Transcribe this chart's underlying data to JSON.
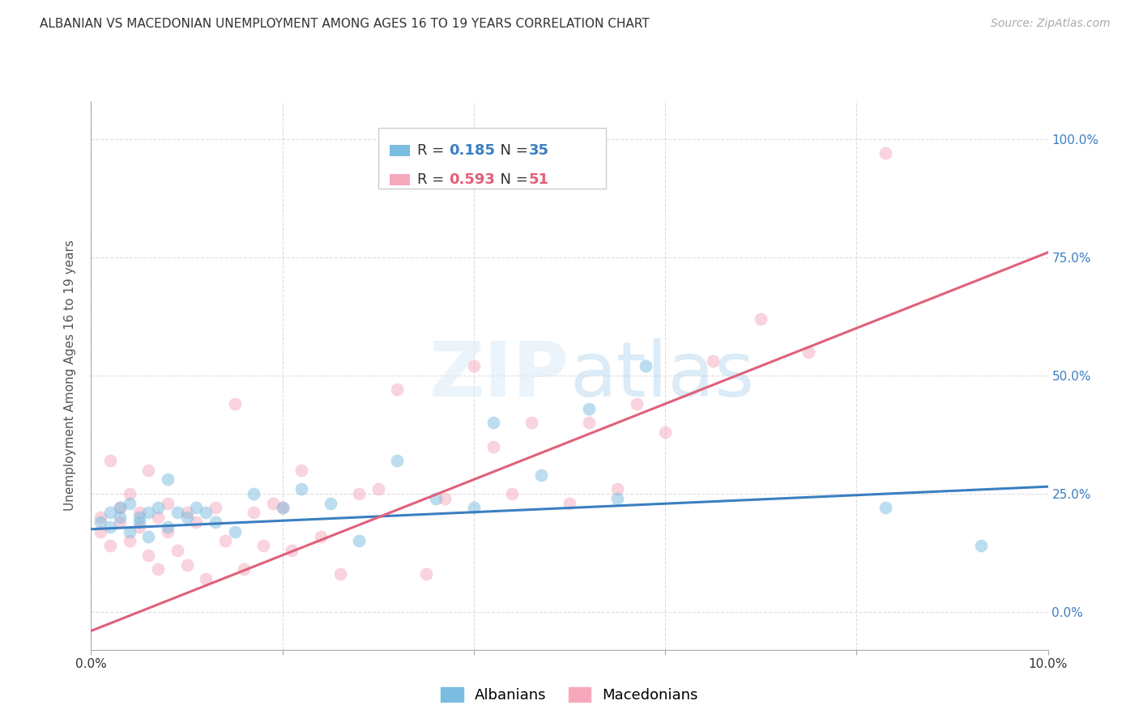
{
  "title": "ALBANIAN VS MACEDONIAN UNEMPLOYMENT AMONG AGES 16 TO 19 YEARS CORRELATION CHART",
  "source": "Source: ZipAtlas.com",
  "ylabel": "Unemployment Among Ages 16 to 19 years",
  "xlim": [
    0.0,
    0.1
  ],
  "ylim": [
    -0.08,
    1.08
  ],
  "yticks": [
    0.0,
    0.25,
    0.5,
    0.75,
    1.0
  ],
  "ytick_labels": [
    "0.0%",
    "25.0%",
    "50.0%",
    "75.0%",
    "100.0%"
  ],
  "xticks": [
    0.0,
    0.02,
    0.04,
    0.06,
    0.08,
    0.1
  ],
  "xtick_labels": [
    "0.0%",
    "",
    "",
    "",
    "",
    "10.0%"
  ],
  "albanian_R": 0.185,
  "albanian_N": 35,
  "macedonian_R": 0.593,
  "macedonian_N": 51,
  "albanian_color": "#7bbde0",
  "macedonian_color": "#f5a8bc",
  "albanian_line_color": "#3a7fc1",
  "macedonian_line_color": "#e0607a",
  "watermark_color": "#d0e8f5",
  "albanian_x": [
    0.001,
    0.002,
    0.002,
    0.003,
    0.003,
    0.004,
    0.004,
    0.005,
    0.005,
    0.006,
    0.006,
    0.007,
    0.008,
    0.008,
    0.009,
    0.01,
    0.011,
    0.012,
    0.013,
    0.015,
    0.017,
    0.02,
    0.022,
    0.025,
    0.028,
    0.032,
    0.036,
    0.04,
    0.042,
    0.047,
    0.052,
    0.055,
    0.058,
    0.083,
    0.093
  ],
  "albanian_y": [
    0.19,
    0.21,
    0.18,
    0.22,
    0.2,
    0.17,
    0.23,
    0.2,
    0.19,
    0.21,
    0.16,
    0.22,
    0.28,
    0.18,
    0.21,
    0.2,
    0.22,
    0.21,
    0.19,
    0.17,
    0.25,
    0.22,
    0.26,
    0.23,
    0.15,
    0.32,
    0.24,
    0.22,
    0.4,
    0.29,
    0.43,
    0.24,
    0.52,
    0.22,
    0.14
  ],
  "macedonian_x": [
    0.001,
    0.001,
    0.002,
    0.002,
    0.003,
    0.003,
    0.004,
    0.004,
    0.005,
    0.005,
    0.006,
    0.006,
    0.007,
    0.007,
    0.008,
    0.008,
    0.009,
    0.01,
    0.01,
    0.011,
    0.012,
    0.013,
    0.014,
    0.015,
    0.016,
    0.017,
    0.018,
    0.019,
    0.02,
    0.021,
    0.022,
    0.024,
    0.026,
    0.028,
    0.03,
    0.032,
    0.035,
    0.037,
    0.04,
    0.042,
    0.044,
    0.046,
    0.05,
    0.052,
    0.055,
    0.057,
    0.06,
    0.065,
    0.07,
    0.075,
    0.083
  ],
  "macedonian_y": [
    0.2,
    0.17,
    0.32,
    0.14,
    0.22,
    0.19,
    0.25,
    0.15,
    0.21,
    0.18,
    0.3,
    0.12,
    0.2,
    0.09,
    0.23,
    0.17,
    0.13,
    0.21,
    0.1,
    0.19,
    0.07,
    0.22,
    0.15,
    0.44,
    0.09,
    0.21,
    0.14,
    0.23,
    0.22,
    0.13,
    0.3,
    0.16,
    0.08,
    0.25,
    0.26,
    0.47,
    0.08,
    0.24,
    0.52,
    0.35,
    0.25,
    0.4,
    0.23,
    0.4,
    0.26,
    0.44,
    0.38,
    0.53,
    0.62,
    0.55,
    0.97
  ],
  "albanian_trend": [
    0.0,
    0.1,
    0.175,
    0.265
  ],
  "macedonian_trend": [
    0.0,
    0.1,
    -0.04,
    0.76
  ],
  "grid_color": "#dddddd",
  "bg_color": "#ffffff",
  "title_fontsize": 11,
  "axis_label_fontsize": 11,
  "tick_fontsize": 11,
  "legend_fontsize": 13,
  "source_fontsize": 10,
  "marker_size": 130,
  "marker_alpha": 0.5,
  "line_width": 2.2
}
